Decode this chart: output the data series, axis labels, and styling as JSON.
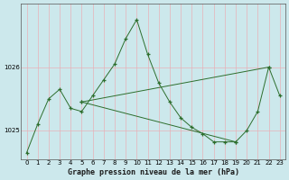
{
  "title": "Graphe pression niveau de la mer (hPa)",
  "bg_color": "#cce8ec",
  "grid_color_v": "#e8b0b8",
  "grid_color_h": "#b8d8dc",
  "line_color": "#2d6e2d",
  "yticks": [
    1025,
    1026
  ],
  "ylim": [
    1024.55,
    1027.0
  ],
  "xlim": [
    -0.5,
    23.5
  ],
  "series1_x": [
    0,
    1,
    2,
    3,
    4,
    5,
    6,
    7,
    8,
    9,
    10,
    11,
    12,
    13,
    14,
    15,
    16,
    17,
    18,
    19,
    20,
    21,
    22,
    23
  ],
  "series1_y": [
    1024.65,
    1025.1,
    1025.5,
    1025.65,
    1025.35,
    1025.3,
    1025.55,
    1025.8,
    1026.05,
    1026.45,
    1026.75,
    1026.2,
    1025.75,
    1025.45,
    1025.2,
    1025.05,
    1024.95,
    1024.82,
    1024.82,
    1024.82,
    1025.0,
    1025.3,
    1026.0,
    1025.55
  ],
  "series2_x": [
    5,
    22
  ],
  "series2_y": [
    1025.45,
    1026.0
  ],
  "series3_x": [
    5,
    19
  ],
  "series3_y": [
    1025.45,
    1024.82
  ],
  "xlabel_fontsize": 6.0,
  "tick_fontsize": 5.0
}
